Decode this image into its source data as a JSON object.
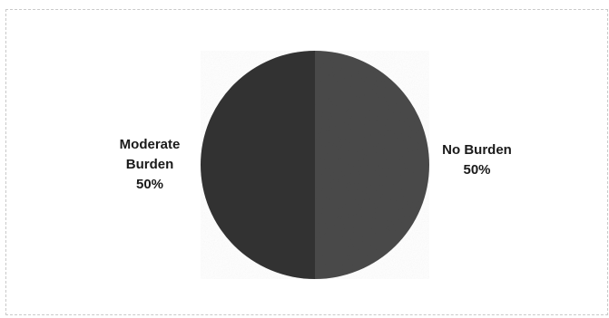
{
  "chart_data": {
    "type": "pie",
    "title": "",
    "slices": [
      {
        "label": "No Burden",
        "value": 50,
        "value_label": "50%",
        "color": "#4a4a4a"
      },
      {
        "label": "Moderate Burden",
        "value": 50,
        "value_label": "50%",
        "color": "#333333"
      }
    ],
    "label_lines": {
      "moderate": [
        "Moderate",
        "Burden",
        "50%"
      ],
      "noburden": [
        "No Burden",
        "50%"
      ]
    },
    "legend": "none",
    "background": "#ffffff"
  }
}
